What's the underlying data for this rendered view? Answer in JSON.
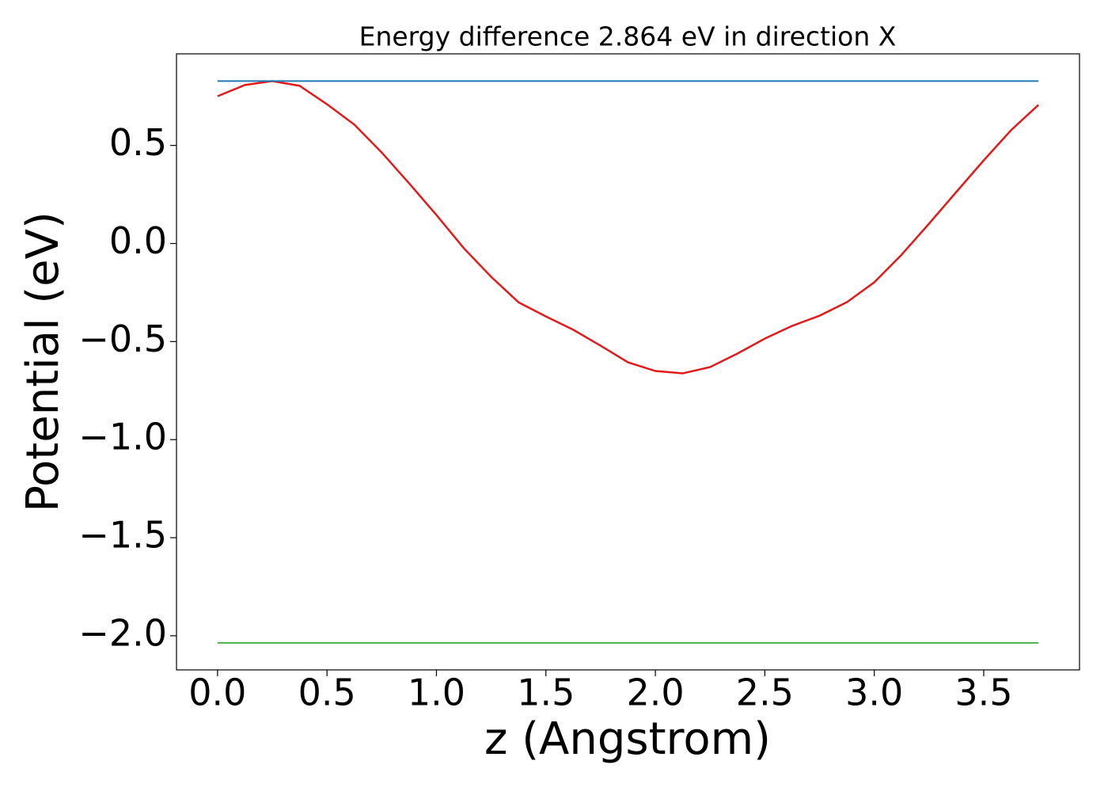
{
  "chart_data": {
    "type": "line",
    "title": "Energy difference 2.864 eV in direction X",
    "xlabel": "z (Angstrom)",
    "ylabel": "Potential (eV)",
    "xlim": [
      -0.1875,
      3.9375
    ],
    "ylim": [
      -2.174,
      0.967
    ],
    "xticks": [
      {
        "value": 0,
        "label": "0.0"
      },
      0.5,
      {
        "value": 1,
        "label": "1.0"
      },
      1.5,
      {
        "value": 2,
        "label": "2.0"
      },
      2.5,
      {
        "value": 3,
        "label": "3.0"
      },
      3.5
    ],
    "yticks": [
      {
        "value": -2,
        "label": "−2.0"
      },
      {
        "value": -1.5,
        "label": "−1.5"
      },
      {
        "value": -1,
        "label": "−1.0"
      },
      {
        "value": -0.5,
        "label": "−0.5"
      },
      {
        "value": 0,
        "label": "0.0"
      },
      0.5
    ],
    "series": [
      {
        "color": "#e31a1c",
        "x": [
          0,
          0.125,
          0.25,
          0.375,
          0.5,
          0.625,
          0.75,
          0.875,
          1,
          1.125,
          1.25,
          1.375,
          1.5,
          1.625,
          1.75,
          1.875,
          2,
          2.125,
          2.25,
          2.375,
          2.5,
          2.625,
          2.75,
          2.875,
          3,
          3.125,
          3.25,
          3.375,
          3.5,
          3.625,
          3.75
        ],
        "values": [
          0.751,
          0.808,
          0.828,
          0.804,
          0.71,
          0.606,
          0.464,
          0.307,
          0.145,
          -0.024,
          -0.17,
          -0.3,
          -0.372,
          -0.44,
          -0.521,
          -0.606,
          -0.65,
          -0.662,
          -0.63,
          -0.561,
          -0.485,
          -0.42,
          -0.368,
          -0.299,
          -0.198,
          -0.057,
          0.101,
          0.263,
          0.424,
          0.578,
          0.707
        ]
      },
      {
        "color": "#1f77b4",
        "x": [
          0,
          3.75
        ],
        "values": [
          0.828,
          0.828
        ]
      },
      {
        "color": "#4daf4a",
        "x": [
          0,
          3.75
        ],
        "values": [
          -2.036,
          -2.036
        ]
      }
    ]
  }
}
